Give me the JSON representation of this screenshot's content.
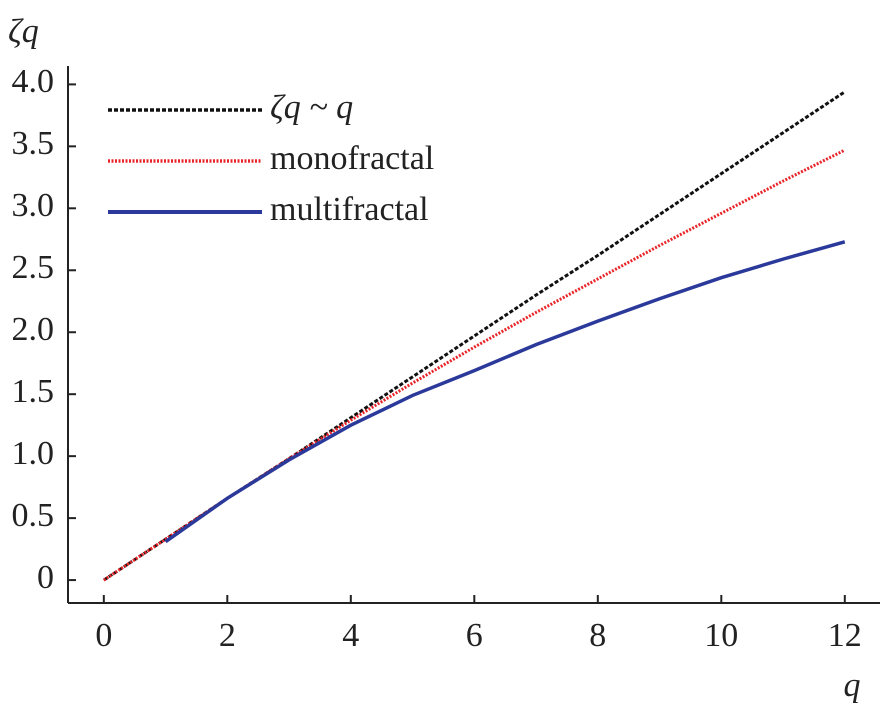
{
  "chart_data": {
    "type": "line",
    "y_label": "ζq",
    "x_label": "q",
    "x": [
      0,
      1,
      2,
      3,
      4,
      5,
      6,
      7,
      8,
      9,
      10,
      11,
      12
    ],
    "series": [
      {
        "name": "ζq ~ q",
        "color": "#111111",
        "style": "dashed",
        "values": [
          0,
          0.33,
          0.66,
          0.98,
          1.31,
          1.64,
          1.97,
          2.3,
          2.62,
          2.95,
          3.28,
          3.61,
          3.94
        ]
      },
      {
        "name": "monofractal",
        "color": "#e8262a",
        "style": "dotted",
        "values": [
          0,
          0.33,
          0.66,
          0.98,
          1.29,
          1.59,
          1.88,
          2.16,
          2.43,
          2.7,
          2.96,
          3.22,
          3.47
        ]
      },
      {
        "name": "multifractal",
        "color": "#2b3a9a",
        "style": "solid",
        "values": [
          null,
          0.31,
          0.66,
          0.97,
          1.25,
          1.49,
          1.69,
          1.9,
          2.09,
          2.27,
          2.44,
          2.59,
          2.73
        ]
      }
    ],
    "xlim": [
      -0.58,
      12.57
    ],
    "ylim": [
      -0.185,
      4.1
    ],
    "xticks": [
      0,
      2,
      4,
      6,
      8,
      10,
      12
    ],
    "yticks": [
      0,
      0.5,
      {
        "value": 1,
        "label": "1.0"
      },
      1.5,
      {
        "value": 2,
        "label": "2.0"
      },
      2.5,
      {
        "value": 3,
        "label": "3.0"
      },
      3.5,
      {
        "value": 4,
        "label": "4.0"
      }
    ],
    "legend": "top-left"
  }
}
